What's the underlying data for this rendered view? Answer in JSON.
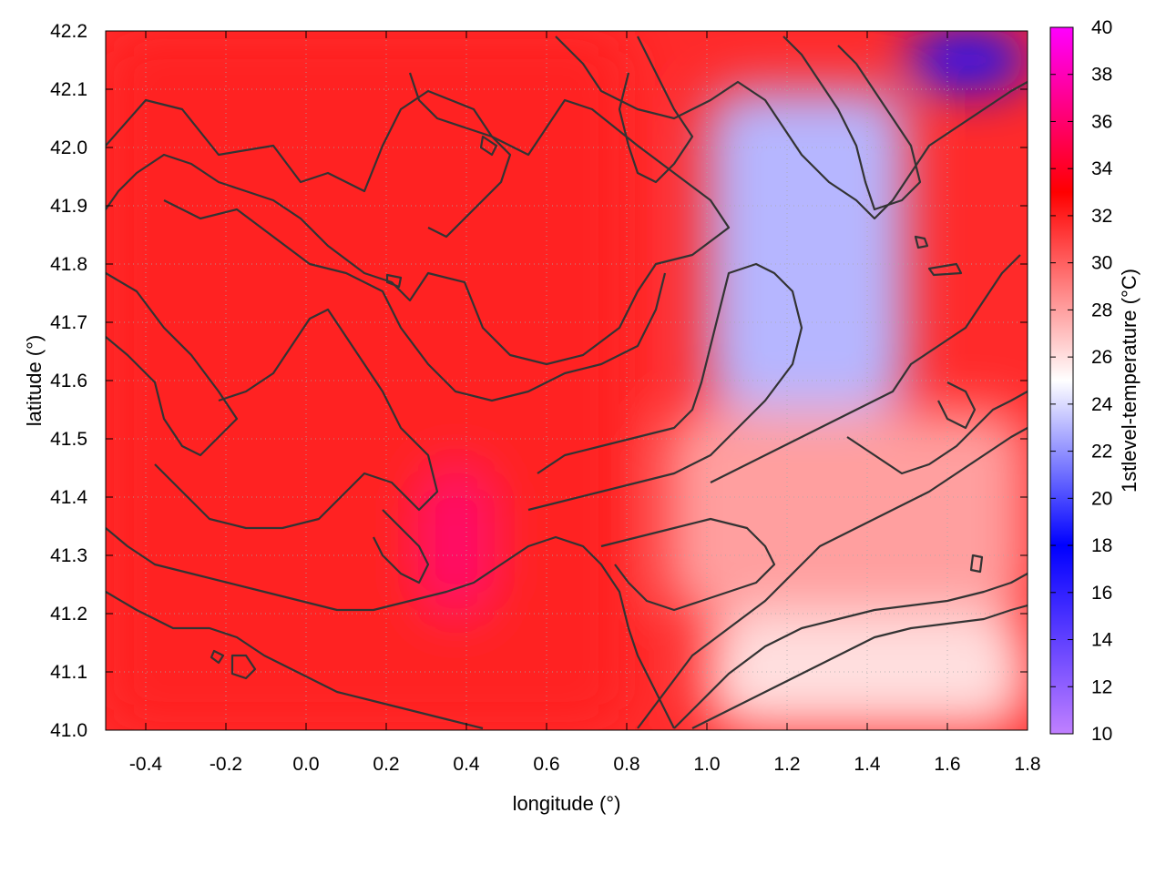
{
  "chart_data": {
    "type": "heatmap",
    "title": "",
    "xlabel": "longitude (°)",
    "ylabel": "latitude (°)",
    "colorbar_label": "1stlevel-temperature (°C)",
    "xlim": [
      -0.5,
      1.8
    ],
    "ylim": [
      41.0,
      42.2
    ],
    "clim": [
      10,
      40
    ],
    "x_ticks": [
      "-0.4",
      "-0.2",
      "0.0",
      "0.2",
      "0.4",
      "0.6",
      "0.8",
      "1.0",
      "1.2",
      "1.4",
      "1.6",
      "1.8"
    ],
    "y_ticks": [
      "41.0",
      "41.1",
      "41.2",
      "41.3",
      "41.4",
      "41.5",
      "41.6",
      "41.7",
      "41.8",
      "41.9",
      "42.0",
      "42.1",
      "42.2"
    ],
    "colorbar_ticks": [
      "10",
      "12",
      "14",
      "16",
      "18",
      "20",
      "22",
      "24",
      "26",
      "28",
      "30",
      "32",
      "34",
      "36",
      "38",
      "40"
    ],
    "colormap": [
      {
        "value": 10,
        "color": "#c080ff"
      },
      {
        "value": 18,
        "color": "#0000ff"
      },
      {
        "value": 25,
        "color": "#ffffff"
      },
      {
        "value": 33,
        "color": "#ff0000"
      },
      {
        "value": 40,
        "color": "#ff00ff"
      }
    ],
    "grid": true,
    "grid_style": "dotted",
    "contour_color": "#333333",
    "temperature_regions": [
      {
        "area": "west and central (lon -0.5 to 0.8, lat 41.0 to 42.2)",
        "temperature_c": 32
      },
      {
        "area": "hot core (lon 0.3 to 0.45, lat 41.2 to 41.45)",
        "temperature_c": 36
      },
      {
        "area": "north-east plateau (lon 1.0 to 1.5, lat 41.55 to 42.1)",
        "temperature_c": 23
      },
      {
        "area": "far north-east corner (lon 1.5 to 1.8, lat 42.1 to 42.2)",
        "temperature_c": 17
      },
      {
        "area": "south-east coast (lon 1.0 to 1.8, lat 41.0 to 41.2)",
        "temperature_c": 26
      },
      {
        "area": "east transition (lon 0.9 to 1.8, lat 41.2 to 41.55)",
        "temperature_c": 28
      }
    ]
  }
}
